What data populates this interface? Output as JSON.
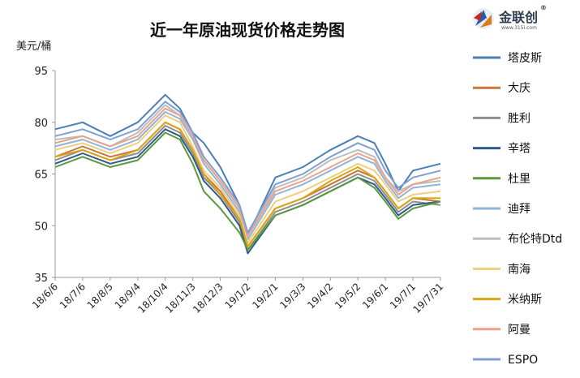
{
  "logo": {
    "name": "金联创",
    "url": "www.315i.com",
    "reg": "®"
  },
  "chart_data": {
    "type": "line",
    "title": "近一年原油现货价格走势图",
    "ylabel": "美元/桶",
    "xlabel": "",
    "ylim": [
      35,
      95
    ],
    "yticks": [
      35,
      50,
      65,
      80,
      95
    ],
    "x_range": [
      "2018-06-06",
      "2019-07-31"
    ],
    "x_ticks": [
      "18/6/6",
      "18/7/6",
      "18/8/5",
      "18/9/4",
      "18/10/4",
      "18/11/3",
      "18/12/3",
      "19/1/2",
      "19/2/1",
      "19/3/3",
      "19/4/2",
      "19/5/2",
      "19/6/1",
      "19/7/1",
      "19/7/31"
    ],
    "grid": false,
    "legend_position": "right",
    "x": [
      "2018-06-06",
      "2018-07-06",
      "2018-08-05",
      "2018-09-04",
      "2018-10-04",
      "2018-10-20",
      "2018-11-03",
      "2018-11-15",
      "2018-12-03",
      "2018-12-24",
      "2019-01-02",
      "2019-02-01",
      "2019-03-03",
      "2019-04-02",
      "2019-05-02",
      "2019-05-20",
      "2019-06-01",
      "2019-06-15",
      "2019-07-01",
      "2019-07-31"
    ],
    "series": [
      {
        "name": "塔皮斯",
        "color": "#4a7fb5",
        "values": [
          78,
          80,
          76,
          80,
          88,
          84,
          77,
          74,
          67,
          56,
          47,
          64,
          67,
          72,
          76,
          74,
          68,
          60,
          66,
          68
        ]
      },
      {
        "name": "大庆",
        "color": "#c8763a",
        "values": [
          70,
          73,
          70,
          72,
          80,
          78,
          72,
          65,
          60,
          52,
          44,
          55,
          58,
          62,
          66,
          64,
          60,
          55,
          58,
          57
        ]
      },
      {
        "name": "胜利",
        "color": "#8e8e8e",
        "values": [
          69,
          72,
          69,
          71,
          79,
          77,
          71,
          64,
          59,
          51,
          43,
          54,
          57,
          61,
          65,
          63,
          59,
          54,
          57,
          56
        ]
      },
      {
        "name": "辛塔",
        "color": "#2e5a8c",
        "values": [
          68,
          71,
          68,
          70,
          78,
          76,
          70,
          63,
          58,
          50,
          42,
          53,
          56,
          60,
          64,
          62,
          58,
          53,
          56,
          57
        ]
      },
      {
        "name": "杜里",
        "color": "#5a9a3c",
        "values": [
          67,
          70,
          67,
          69,
          77,
          75,
          68,
          60,
          55,
          48,
          43,
          53,
          56,
          60,
          64,
          61,
          57,
          52,
          55,
          57
        ]
      },
      {
        "name": "迪拜",
        "color": "#8eb4d8",
        "values": [
          73,
          75,
          72,
          75,
          83,
          81,
          75,
          68,
          62,
          54,
          46,
          59,
          62,
          66,
          70,
          68,
          63,
          58,
          61,
          62
        ]
      },
      {
        "name": "布伦特Dtd",
        "color": "#bdbdbd",
        "values": [
          75,
          76,
          73,
          77,
          85,
          82,
          76,
          69,
          63,
          55,
          47,
          61,
          64,
          69,
          72,
          70,
          64,
          60,
          62,
          63
        ]
      },
      {
        "name": "南海",
        "color": "#f1cd7e",
        "values": [
          72,
          74,
          71,
          74,
          82,
          80,
          73,
          66,
          61,
          53,
          45,
          57,
          60,
          64,
          68,
          66,
          62,
          57,
          59,
          60
        ]
      },
      {
        "name": "米纳斯",
        "color": "#d9a514",
        "values": [
          70,
          72,
          69,
          72,
          80,
          78,
          72,
          65,
          59,
          52,
          44,
          55,
          58,
          63,
          67,
          64,
          60,
          55,
          58,
          58
        ]
      },
      {
        "name": "阿曼",
        "color": "#eaa28a",
        "values": [
          74,
          76,
          73,
          76,
          84,
          82,
          76,
          69,
          63,
          55,
          47,
          60,
          63,
          67,
          71,
          69,
          64,
          59,
          62,
          64
        ]
      },
      {
        "name": "ESPO",
        "color": "#7f9fd3",
        "values": [
          76,
          78,
          75,
          78,
          86,
          83,
          77,
          70,
          64,
          56,
          48,
          62,
          65,
          70,
          74,
          72,
          66,
          61,
          64,
          66
        ]
      }
    ]
  }
}
